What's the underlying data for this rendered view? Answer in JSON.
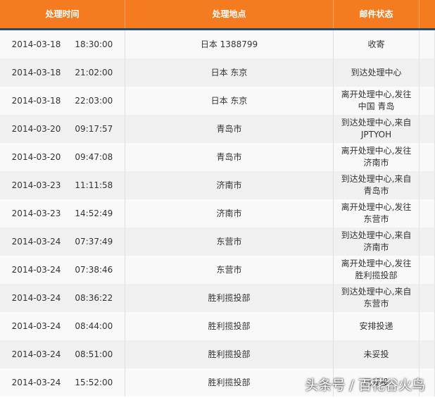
{
  "header": {
    "columns": [
      "处理时间",
      "处理地点",
      "邮件状态"
    ]
  },
  "table": {
    "rows": [
      {
        "date": "2014-03-18",
        "time": "18:30:00",
        "location": "日本 1388799",
        "status": [
          "收寄"
        ]
      },
      {
        "date": "2014-03-18",
        "time": "21:02:00",
        "location": "日本 东京",
        "status": [
          "到达处理中心"
        ]
      },
      {
        "date": "2014-03-18",
        "time": "22:03:00",
        "location": "日本 东京",
        "status": [
          "离开处理中心,发往",
          "中国 青岛"
        ]
      },
      {
        "date": "2014-03-20",
        "time": "09:17:57",
        "location": "青岛市",
        "status": [
          "到达处理中心,来自",
          "JPTYOH"
        ]
      },
      {
        "date": "2014-03-20",
        "time": "09:47:08",
        "location": "青岛市",
        "status": [
          "离开处理中心,发往",
          "济南市"
        ]
      },
      {
        "date": "2014-03-23",
        "time": "11:11:58",
        "location": "济南市",
        "status": [
          "到达处理中心,来自",
          "青岛市"
        ]
      },
      {
        "date": "2014-03-23",
        "time": "14:52:49",
        "location": "济南市",
        "status": [
          "离开处理中心,发往",
          "东营市"
        ]
      },
      {
        "date": "2014-03-24",
        "time": "07:37:49",
        "location": "东营市",
        "status": [
          "到达处理中心,来自",
          "济南市"
        ]
      },
      {
        "date": "2014-03-24",
        "time": "07:38:46",
        "location": "东营市",
        "status": [
          "离开处理中心,发往",
          "胜利揽投部"
        ]
      },
      {
        "date": "2014-03-24",
        "time": "08:36:22",
        "location": "胜利揽投部",
        "status": [
          "到达处理中心,来自",
          "东营市"
        ]
      },
      {
        "date": "2014-03-24",
        "time": "08:44:00",
        "location": "胜利揽投部",
        "status": [
          "安排投递"
        ]
      },
      {
        "date": "2014-03-24",
        "time": "08:51:00",
        "location": "胜利揽投部",
        "status": [
          "未妥投"
        ]
      },
      {
        "date": "2014-03-24",
        "time": "15:52:00",
        "location": "胜利揽投部",
        "status": [
          "已妥投"
        ]
      }
    ]
  },
  "watermark": "头条号 / 百花谷火鸟"
}
